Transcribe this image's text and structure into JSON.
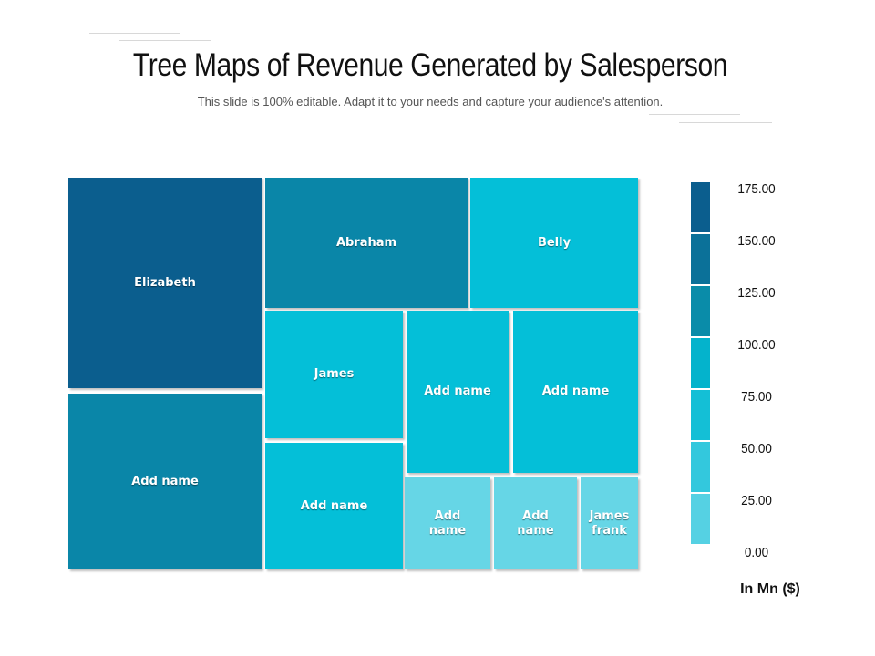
{
  "chart_data": {
    "type": "treemap",
    "title": "Tree Maps of Revenue Generated by Salesperson",
    "subtitle": "This slide is 100% editable. Adapt it to your needs and capture your audience's attention.",
    "items": [
      {
        "label": "Elizabeth",
        "color": "#0b5e8e"
      },
      {
        "label": "Add name",
        "color": "#0a86a8"
      },
      {
        "label": "Abraham",
        "color": "#0a86a8"
      },
      {
        "label": "Belly",
        "color": "#04bfd8"
      },
      {
        "label": "James",
        "color": "#04bfd8"
      },
      {
        "label": "Add name",
        "color": "#04bfd8"
      },
      {
        "label": "Add name",
        "color": "#04bfd8"
      },
      {
        "label": "Add name",
        "color": "#04bfd8"
      },
      {
        "label": "Add\nname",
        "color": "#66d6e6"
      },
      {
        "label": "Add\nname",
        "color": "#66d6e6"
      },
      {
        "label": "James\nfrank",
        "color": "#66d6e6"
      }
    ],
    "legend": {
      "ticks": [
        "175.00",
        "150.00",
        "125.00",
        "100.00",
        "75.00",
        "50.00",
        "25.00",
        "0.00"
      ],
      "colors": [
        "#0b5e8e",
        "#0b7199",
        "#0a8ca9",
        "#04b3cc",
        "#14bfd6",
        "#33c8dd",
        "#55d1e3"
      ],
      "unit": "In Mn ($)",
      "placement": "right"
    }
  }
}
